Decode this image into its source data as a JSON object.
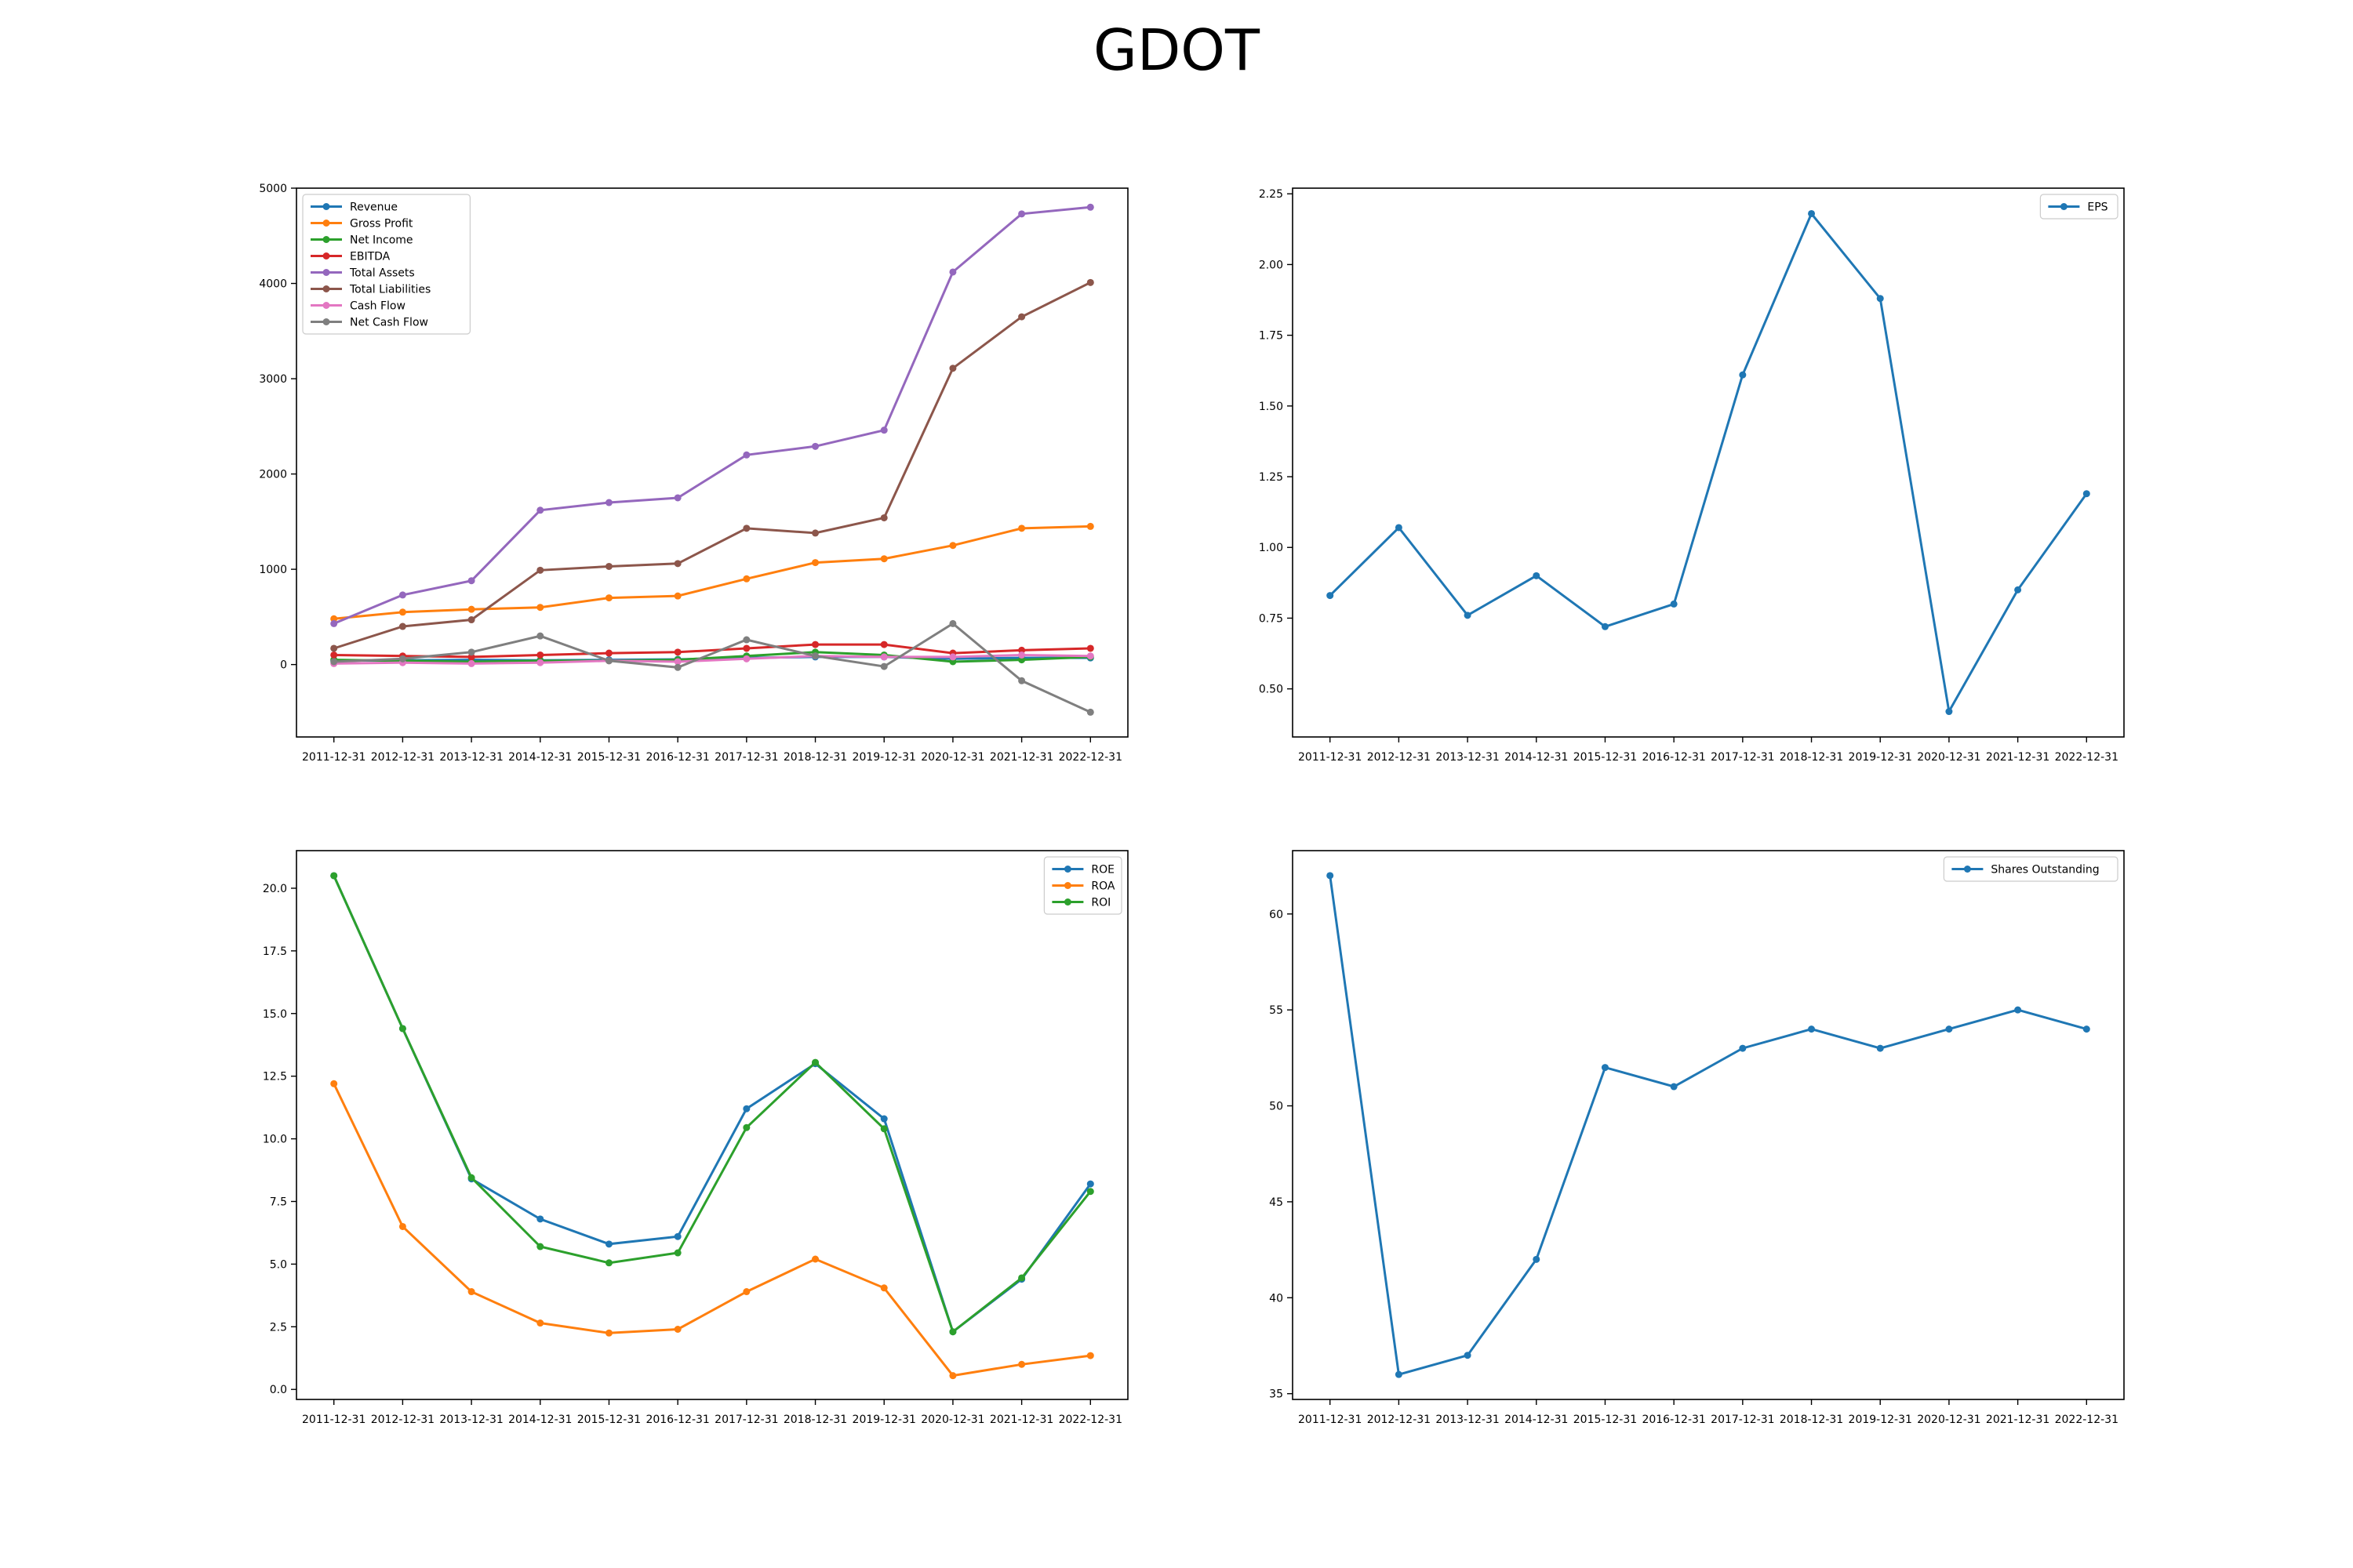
{
  "page": {
    "title": "GDOT"
  },
  "chart_data": [
    {
      "type": "line",
      "x": [
        "2011-12-31",
        "2012-12-31",
        "2013-12-31",
        "2014-12-31",
        "2015-12-31",
        "2016-12-31",
        "2017-12-31",
        "2018-12-31",
        "2019-12-31",
        "2020-12-31",
        "2021-12-31",
        "2022-12-31"
      ],
      "ylim": [
        -760,
        5000
      ],
      "yticks": [
        0,
        1000,
        2000,
        3000,
        4000,
        5000
      ],
      "legend": "upper-left",
      "series": [
        {
          "name": "Revenue",
          "color": "#1f77b4",
          "values": [
            40,
            45,
            50,
            45,
            50,
            55,
            70,
            80,
            80,
            60,
            70,
            70
          ]
        },
        {
          "name": "Gross Profit",
          "color": "#ff7f0e",
          "values": [
            480,
            550,
            580,
            600,
            700,
            720,
            900,
            1070,
            1110,
            1250,
            1430,
            1450
          ]
        },
        {
          "name": "Net Income",
          "color": "#2ca02c",
          "values": [
            50,
            40,
            30,
            40,
            40,
            50,
            90,
            130,
            100,
            30,
            50,
            80
          ]
        },
        {
          "name": "EBITDA",
          "color": "#d62728",
          "values": [
            100,
            90,
            80,
            100,
            120,
            130,
            170,
            210,
            210,
            120,
            150,
            170
          ]
        },
        {
          "name": "Total Assets",
          "color": "#9467bd",
          "values": [
            430,
            730,
            880,
            1620,
            1700,
            1750,
            2200,
            2290,
            2460,
            4120,
            4730,
            4800
          ]
        },
        {
          "name": "Total Liabilities",
          "color": "#8c564b",
          "values": [
            170,
            400,
            470,
            990,
            1030,
            1060,
            1430,
            1380,
            1540,
            3110,
            3650,
            4010
          ]
        },
        {
          "name": "Cash Flow",
          "color": "#e377c2",
          "values": [
            10,
            20,
            10,
            20,
            40,
            30,
            60,
            90,
            80,
            80,
            100,
            90
          ]
        },
        {
          "name": "Net Cash Flow",
          "color": "#7f7f7f",
          "values": [
            30,
            60,
            130,
            300,
            40,
            -30,
            260,
            90,
            -20,
            430,
            -170,
            -500
          ]
        }
      ]
    },
    {
      "type": "line",
      "x": [
        "2011-12-31",
        "2012-12-31",
        "2013-12-31",
        "2014-12-31",
        "2015-12-31",
        "2016-12-31",
        "2017-12-31",
        "2018-12-31",
        "2019-12-31",
        "2020-12-31",
        "2021-12-31",
        "2022-12-31"
      ],
      "ylim": [
        0.33,
        2.27
      ],
      "yticks": [
        0.5,
        0.75,
        1.0,
        1.25,
        1.5,
        1.75,
        2.0,
        2.25
      ],
      "tick_decimals": 2,
      "legend": "upper-right",
      "series": [
        {
          "name": "EPS",
          "color": "#1f77b4",
          "values": [
            0.83,
            1.07,
            0.76,
            0.9,
            0.72,
            0.8,
            1.61,
            2.18,
            1.88,
            0.42,
            0.85,
            1.19
          ]
        }
      ]
    },
    {
      "type": "line",
      "x": [
        "2011-12-31",
        "2012-12-31",
        "2013-12-31",
        "2014-12-31",
        "2015-12-31",
        "2016-12-31",
        "2017-12-31",
        "2018-12-31",
        "2019-12-31",
        "2020-12-31",
        "2021-12-31",
        "2022-12-31"
      ],
      "ylim": [
        -0.4,
        21.5
      ],
      "yticks": [
        0.0,
        2.5,
        5.0,
        7.5,
        10.0,
        12.5,
        15.0,
        17.5,
        20.0
      ],
      "tick_decimals": 1,
      "legend": "upper-right",
      "series": [
        {
          "name": "ROE",
          "color": "#1f77b4",
          "values": [
            20.5,
            14.4,
            8.4,
            6.8,
            5.8,
            6.1,
            11.2,
            13.0,
            10.8,
            2.3,
            4.4,
            8.2
          ]
        },
        {
          "name": "ROA",
          "color": "#ff7f0e",
          "values": [
            12.2,
            6.5,
            3.9,
            2.65,
            2.25,
            2.4,
            3.9,
            5.2,
            4.05,
            0.55,
            1.0,
            1.35
          ]
        },
        {
          "name": "ROI",
          "color": "#2ca02c",
          "values": [
            20.5,
            14.4,
            8.45,
            5.7,
            5.05,
            5.45,
            10.45,
            13.05,
            10.4,
            2.3,
            4.45,
            7.9
          ]
        }
      ]
    },
    {
      "type": "line",
      "x": [
        "2011-12-31",
        "2012-12-31",
        "2013-12-31",
        "2014-12-31",
        "2015-12-31",
        "2016-12-31",
        "2017-12-31",
        "2018-12-31",
        "2019-12-31",
        "2020-12-31",
        "2021-12-31",
        "2022-12-31"
      ],
      "ylim": [
        34.7,
        63.3
      ],
      "yticks": [
        35,
        40,
        45,
        50,
        55,
        60
      ],
      "legend": "upper-right",
      "series": [
        {
          "name": "Shares Outstanding",
          "color": "#1f77b4",
          "values": [
            62,
            36,
            37,
            42,
            52,
            51,
            53,
            54,
            53,
            54,
            55,
            54
          ]
        }
      ]
    }
  ]
}
